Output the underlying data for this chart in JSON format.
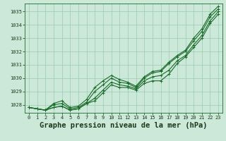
{
  "title": "Graphe pression niveau de la mer (hPa)",
  "bg_color": "#cce8d8",
  "grid_color": "#99ccb3",
  "line_color": "#1a6b2a",
  "xlim": [
    -0.5,
    23.5
  ],
  "ylim": [
    1027.4,
    1035.6
  ],
  "yticks": [
    1028,
    1029,
    1030,
    1031,
    1032,
    1033,
    1034,
    1035
  ],
  "xticks": [
    0,
    1,
    2,
    3,
    4,
    5,
    6,
    7,
    8,
    9,
    10,
    11,
    12,
    13,
    14,
    15,
    16,
    17,
    18,
    19,
    20,
    21,
    22,
    23
  ],
  "series": [
    [
      1027.8,
      1027.7,
      1027.6,
      1027.8,
      1027.9,
      1027.6,
      1027.7,
      1028.1,
      1028.3,
      1028.9,
      1029.5,
      1029.3,
      1029.3,
      1029.1,
      1029.6,
      1029.8,
      1029.8,
      1030.3,
      1031.1,
      1031.6,
      1032.3,
      1033.0,
      1034.1,
      1034.8
    ],
    [
      1027.8,
      1027.7,
      1027.6,
      1027.8,
      1027.9,
      1027.6,
      1027.7,
      1028.1,
      1028.5,
      1029.1,
      1029.7,
      1029.5,
      1029.4,
      1029.2,
      1029.8,
      1030.1,
      1030.2,
      1030.6,
      1031.3,
      1031.7,
      1032.5,
      1033.2,
      1034.3,
      1035.0
    ],
    [
      1027.8,
      1027.7,
      1027.6,
      1028.0,
      1028.1,
      1027.7,
      1027.8,
      1028.2,
      1029.0,
      1029.5,
      1030.0,
      1029.7,
      1029.6,
      1029.3,
      1030.0,
      1030.4,
      1030.5,
      1031.1,
      1031.6,
      1032.0,
      1032.8,
      1033.5,
      1034.6,
      1035.2
    ],
    [
      1027.8,
      1027.7,
      1027.6,
      1028.1,
      1028.3,
      1027.8,
      1027.9,
      1028.4,
      1029.3,
      1029.8,
      1030.2,
      1029.9,
      1029.7,
      1029.4,
      1030.1,
      1030.5,
      1030.6,
      1031.2,
      1031.7,
      1032.1,
      1033.0,
      1033.7,
      1034.8,
      1035.4
    ]
  ],
  "marker": "+",
  "markersize": 3.5,
  "linewidth": 0.8,
  "title_fontsize": 7.5,
  "tick_fontsize": 5.0,
  "ylabel_fontsize": 5.0
}
